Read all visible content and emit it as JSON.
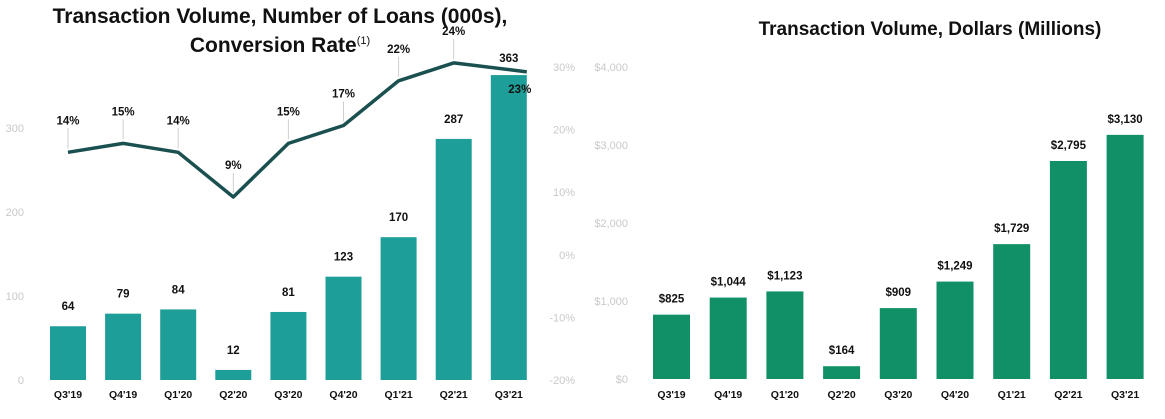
{
  "charts": {
    "left": {
      "title_line1": "Transaction Volume, Number of Loans (000s),",
      "title_line2": "Conversion Rate",
      "title_footnote": "(1)"
    },
    "right": {
      "title": "Transaction Volume, Dollars (Millions)"
    }
  },
  "colors": {
    "teal_bar": "#1e9e98",
    "green_bar": "#119068",
    "line": "#1b5050",
    "tick": "#c9c9c9"
  },
  "chart_data": [
    {
      "type": "bar",
      "title": "Transaction Volume, Number of Loans (000s), Conversion Rate",
      "categories": [
        "Q3'19",
        "Q4'19",
        "Q1'20",
        "Q2'20",
        "Q3'20",
        "Q4'20",
        "Q1'21",
        "Q2'21",
        "Q3'21"
      ],
      "values": [
        64,
        79,
        84,
        12,
        81,
        123,
        170,
        287,
        363
      ],
      "value_labels": [
        "64",
        "79",
        "84",
        "12",
        "81",
        "123",
        "170",
        "287",
        "363"
      ],
      "ylim": [
        0,
        300
      ],
      "yticks": [
        "0",
        "100",
        "200",
        "300"
      ],
      "secondary": {
        "type": "line",
        "values": [
          14,
          15,
          14,
          9,
          15,
          17,
          22,
          24,
          23
        ],
        "value_labels": [
          "14%",
          "15%",
          "14%",
          "9%",
          "15%",
          "17%",
          "22%",
          "24%",
          "23%"
        ],
        "ylim": [
          -20,
          30
        ],
        "yticks": [
          "-20%",
          "-10%",
          "0%",
          "10%",
          "20%",
          "30%"
        ]
      },
      "grid": false,
      "legend": "none"
    },
    {
      "type": "bar",
      "title": "Transaction Volume, Dollars (Millions)",
      "categories": [
        "Q3'19",
        "Q4'19",
        "Q1'20",
        "Q2'20",
        "Q3'20",
        "Q4'20",
        "Q1'21",
        "Q2'21",
        "Q3'21"
      ],
      "values": [
        825,
        1044,
        1123,
        164,
        909,
        1249,
        1729,
        2795,
        3130
      ],
      "value_labels": [
        "$825",
        "$1,044",
        "$1,123",
        "$164",
        "$909",
        "$1,249",
        "$1,729",
        "$2,795",
        "$3,130"
      ],
      "ylim": [
        0,
        4000
      ],
      "yticks": [
        "$0",
        "$1,000",
        "$2,000",
        "$3,000",
        "$4,000"
      ],
      "grid": false,
      "legend": "none"
    }
  ]
}
